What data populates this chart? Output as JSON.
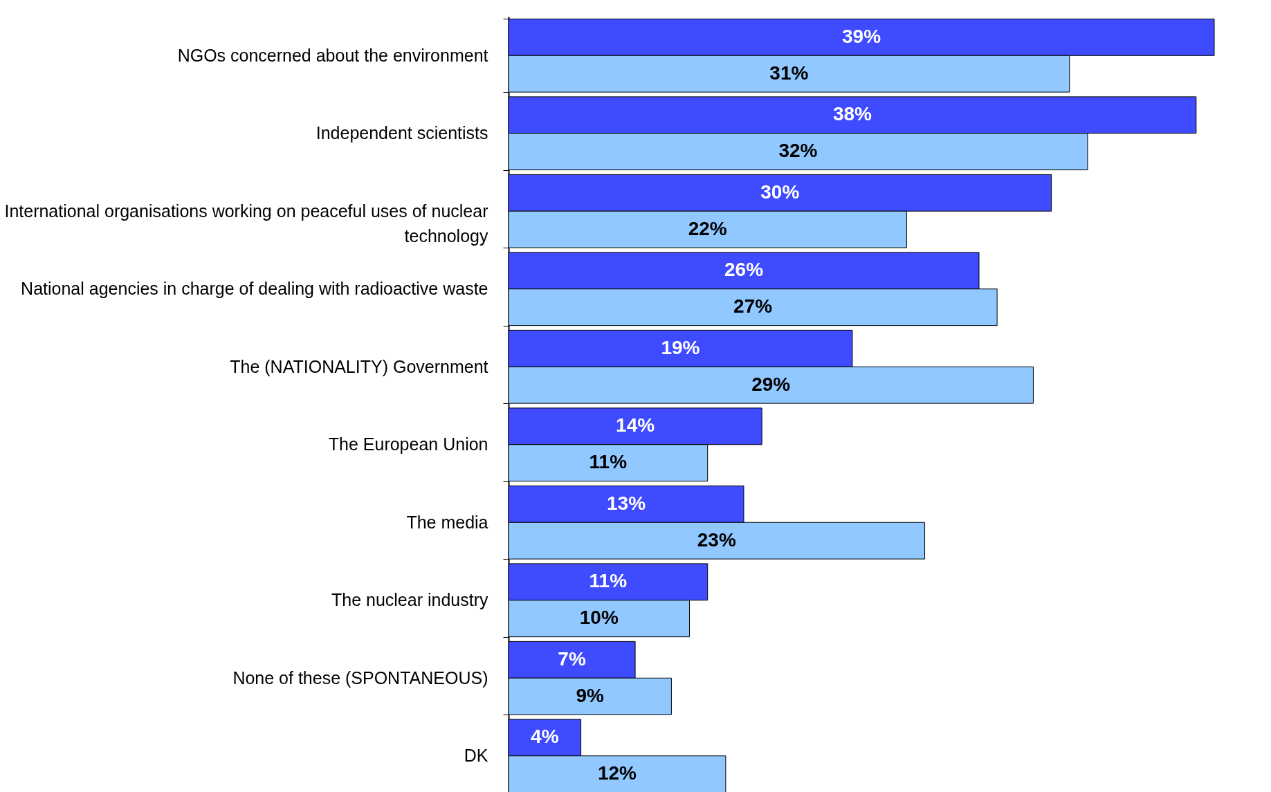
{
  "chart_data": {
    "type": "bar",
    "orientation": "horizontal",
    "categories": [
      "NGOs concerned about the environment",
      "Independent scientists",
      "International organisations working on peaceful uses of nuclear technology",
      "National agencies in charge of dealing with radioactive waste",
      "The (NATIONALITY) Government",
      "The European Union",
      "The media",
      "The nuclear industry",
      "None of these (SPONTANEOUS)",
      "DK"
    ],
    "series": [
      {
        "color": "#3f4bff",
        "values": [
          39,
          38,
          30,
          26,
          19,
          14,
          13,
          11,
          7,
          4
        ],
        "value_labels": [
          "39%",
          "38%",
          "30%",
          "26%",
          "19%",
          "14%",
          "13%",
          "11%",
          "7%",
          "4%"
        ]
      },
      {
        "color": "#90c8ff",
        "values": [
          31,
          32,
          22,
          27,
          29,
          11,
          23,
          10,
          9,
          12
        ],
        "value_labels": [
          "31%",
          "32%",
          "22%",
          "27%",
          "29%",
          "11%",
          "23%",
          "10%",
          "9%",
          "12%"
        ]
      }
    ],
    "legend": false,
    "grid": false
  }
}
